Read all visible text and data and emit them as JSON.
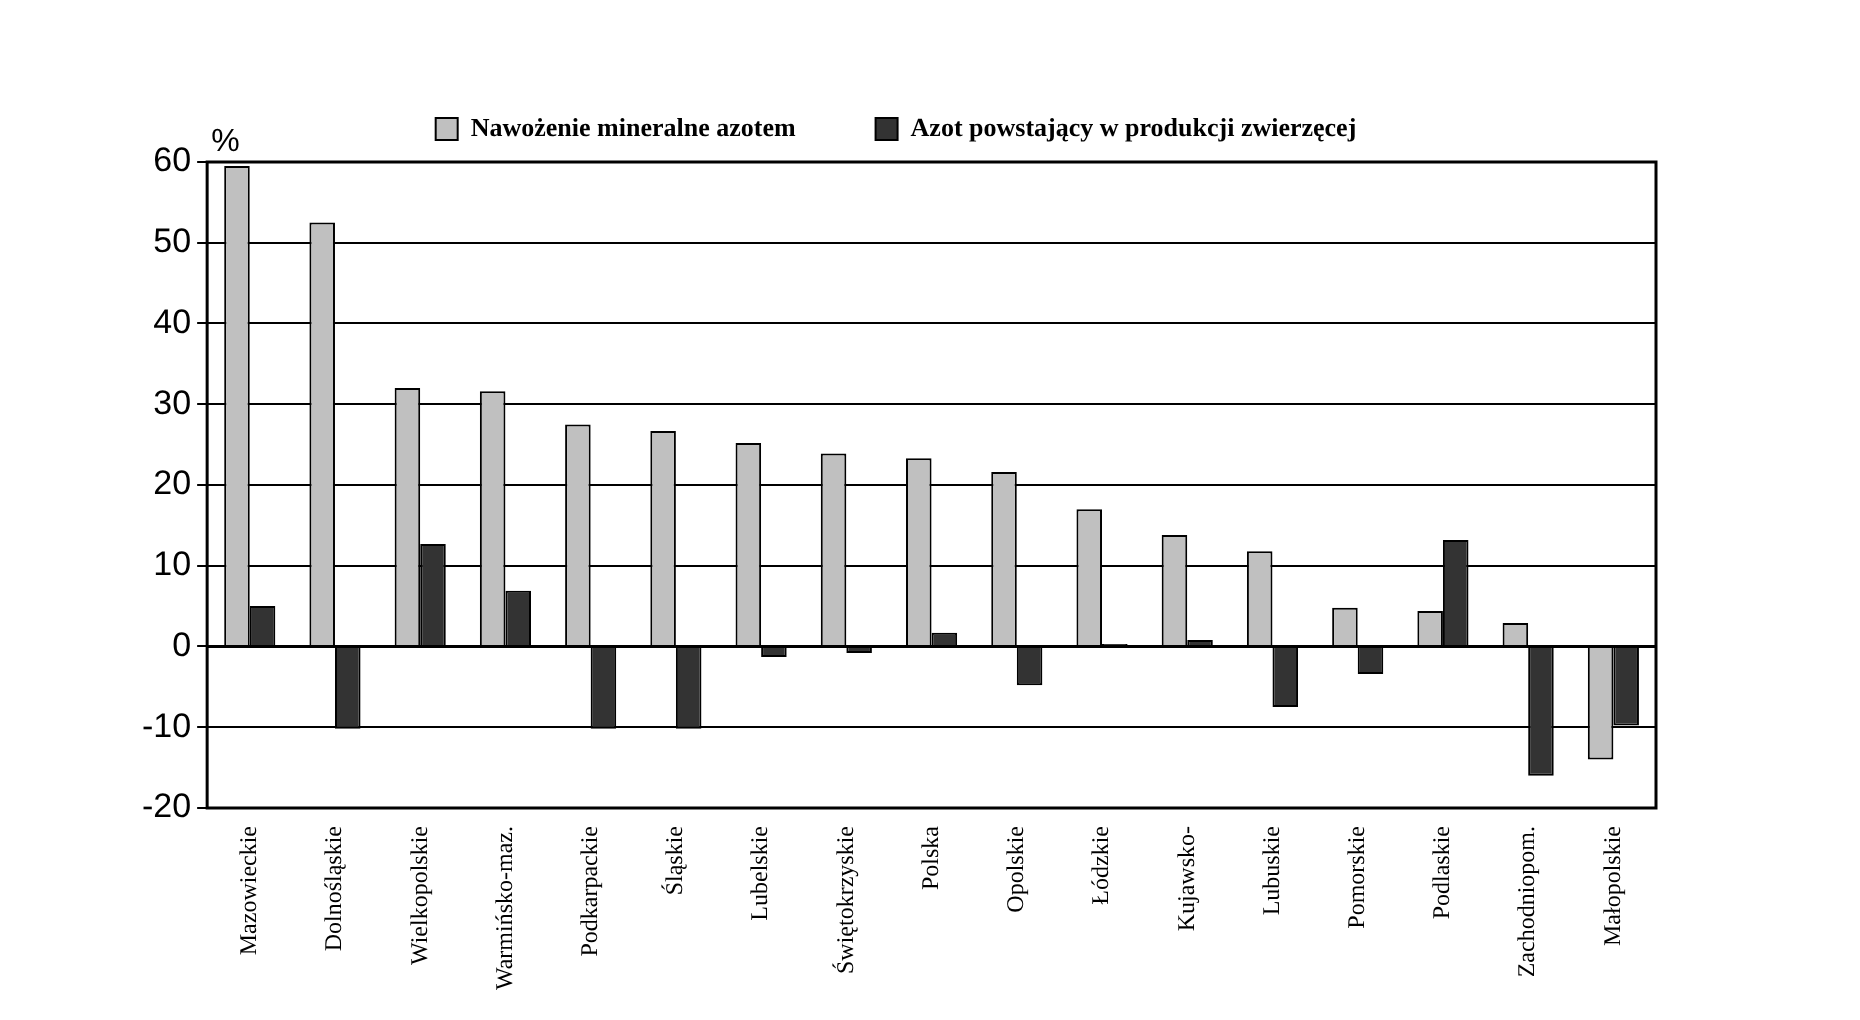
{
  "chart_data": {
    "type": "bar",
    "ylabel": "%",
    "categories": [
      "Mazowieckie",
      "Dolnośląskie",
      "Wielkopolskie",
      "Warmińsko-maz.",
      "Podkarpackie",
      "Śląskie",
      "Lubelskie",
      "Świętokrzyskie",
      "Polska",
      "Opolskie",
      "Łódzkie",
      "Kujawsko-",
      "Lubuskie",
      "Pomorskie",
      "Podlaskie",
      "Zachodniopom.",
      "Małopolskie"
    ],
    "series": [
      {
        "name": "Nawożenie mineralne azotem",
        "color": "#c0c0c0",
        "values": [
          59.5,
          52.5,
          32,
          31.6,
          27.5,
          26.7,
          25.2,
          23.9,
          23.3,
          21.6,
          17,
          13.8,
          11.8,
          4.8,
          4.4,
          2.9,
          -14
        ]
      },
      {
        "name": "Azot powstający w produkcji zwierzęcej",
        "color": "#333333",
        "values": [
          5,
          -10.2,
          12.7,
          6.9,
          -10.2,
          -10.2,
          -1.3,
          -0.8,
          1.7,
          -4.8,
          0.3,
          0.8,
          -7.5,
          -3.4,
          13.2,
          -16,
          -9.8
        ]
      }
    ],
    "ylim": [
      -20,
      60
    ],
    "yticks": [
      -20,
      -10,
      0,
      10,
      20,
      30,
      40,
      50,
      60
    ],
    "grid": "y",
    "legend": "top"
  }
}
